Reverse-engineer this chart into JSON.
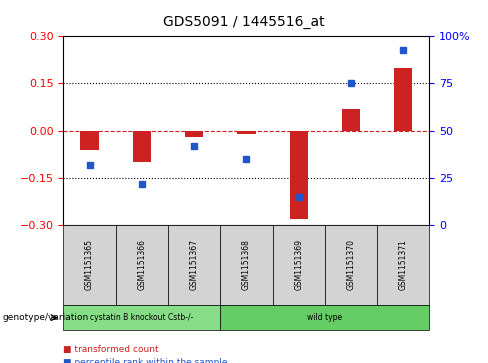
{
  "title": "GDS5091 / 1445516_at",
  "samples": [
    "GSM1151365",
    "GSM1151366",
    "GSM1151367",
    "GSM1151368",
    "GSM1151369",
    "GSM1151370",
    "GSM1151371"
  ],
  "transformed_counts": [
    -0.06,
    -0.1,
    -0.02,
    -0.01,
    -0.28,
    0.07,
    0.2
  ],
  "percentile_ranks": [
    32,
    22,
    42,
    35,
    15,
    75,
    93
  ],
  "ylim_left": [
    -0.3,
    0.3
  ],
  "ylim_right": [
    0,
    100
  ],
  "yticks_left": [
    -0.3,
    -0.15,
    0,
    0.15,
    0.3
  ],
  "yticks_right": [
    0,
    25,
    50,
    75,
    100
  ],
  "ytick_right_labels": [
    "0",
    "25",
    "50",
    "75",
    "100%"
  ],
  "hlines": [
    0.15,
    -0.15
  ],
  "bar_color": "#cc2222",
  "dot_color": "#2255cc",
  "zero_line_color": "#cc2222",
  "groups": [
    {
      "label": "cystatin B knockout Cstb-/-",
      "count": 3,
      "color": "#88dd88"
    },
    {
      "label": "wild type",
      "count": 4,
      "color": "#66cc66"
    }
  ],
  "legend_items": [
    {
      "label": "transformed count",
      "color": "#cc2222"
    },
    {
      "label": "percentile rank within the sample",
      "color": "#2255cc"
    }
  ],
  "genotype_label": "genotype/variation",
  "sample_box_color": "#d3d3d3",
  "background_color": "#ffffff"
}
